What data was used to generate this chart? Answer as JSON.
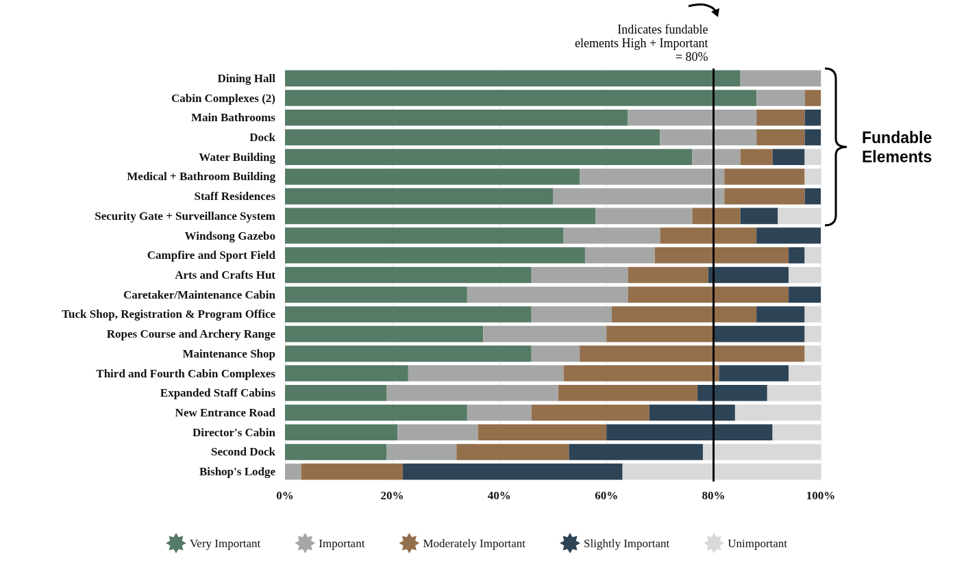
{
  "chart_data": {
    "type": "bar",
    "orientation": "horizontal",
    "stacked": true,
    "categories": [
      "Dining Hall",
      "Cabin Complexes (2)",
      "Main Bathrooms",
      "Dock",
      "Water Building",
      "Medical + Bathroom Building",
      "Staff Residences",
      "Security Gate + Surveillance System",
      "Windsong Gazebo",
      "Campfire and Sport Field",
      "Arts and Crafts Hut",
      "Caretaker/Maintenance Cabin",
      "Tuck Shop, Registration & Program Office",
      "Ropes Course and Archery Range",
      "Maintenance Shop",
      "Third and Fourth Cabin Complexes",
      "Expanded Staff Cabins",
      "New Entrance Road",
      "Director's Cabin",
      "Second Dock",
      "Bishop's Lodge"
    ],
    "series": [
      {
        "name": "Very Important",
        "color": "#557b66",
        "values": [
          85,
          88,
          64,
          70,
          76,
          55,
          50,
          58,
          52,
          56,
          46,
          34,
          46,
          37,
          46,
          23,
          19,
          34,
          21,
          19,
          0
        ]
      },
      {
        "name": "Important",
        "color": "#a5a7a6",
        "values": [
          15,
          9,
          24,
          18,
          9,
          27,
          32,
          18,
          18,
          13,
          18,
          30,
          15,
          23,
          9,
          29,
          32,
          12,
          15,
          13,
          3
        ]
      },
      {
        "name": "Moderately Important",
        "color": "#946f4c",
        "values": [
          0,
          3,
          9,
          9,
          6,
          15,
          15,
          9,
          18,
          25,
          15,
          30,
          27,
          20,
          42,
          29,
          26,
          22,
          24,
          21,
          19
        ]
      },
      {
        "name": "Slightly Important",
        "color": "#2d4356",
        "values": [
          0,
          0,
          3,
          3,
          6,
          0,
          3,
          7,
          12,
          3,
          15,
          6,
          9,
          17,
          0,
          13,
          13,
          16,
          31,
          25,
          41
        ]
      },
      {
        "name": "Unimportant",
        "color": "#d9d9d9",
        "values": [
          0,
          0,
          0,
          0,
          3,
          3,
          0,
          8,
          0,
          3,
          6,
          0,
          3,
          3,
          3,
          6,
          10,
          16,
          9,
          22,
          37
        ]
      }
    ],
    "xlim": [
      0,
      100
    ],
    "xticks": [
      {
        "value": 0,
        "label": "0%"
      },
      {
        "value": 20,
        "label": "20%"
      },
      {
        "value": 40,
        "label": "40%"
      },
      {
        "value": 60,
        "label": "60%"
      },
      {
        "value": 80,
        "label": "80%"
      },
      {
        "value": 100,
        "label": "100%"
      }
    ],
    "grid": "x",
    "legend": "bottom",
    "ref_lines": [
      {
        "axis": "x",
        "value": 80,
        "label": "Indicates fundable elements High + Important = 80%",
        "color": "#000000"
      }
    ],
    "annotations": [
      "Fundable Elements"
    ]
  }
}
